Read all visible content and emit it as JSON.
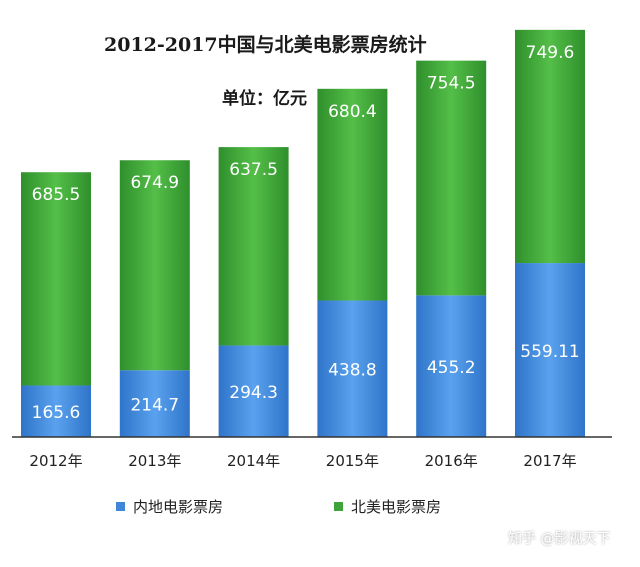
{
  "chart_data": {
    "type": "bar",
    "stacked": true,
    "title": "2012-2017中国与北美电影票房统计",
    "subtitle": "单位：亿元",
    "categories": [
      "2012年",
      "2013年",
      "2014年",
      "2015年",
      "2016年",
      "2017年"
    ],
    "series": [
      {
        "name": "内地电影票房",
        "color": "#3f86d8",
        "values": [
          165.6,
          214.7,
          294.3,
          438.8,
          455.2,
          559.11
        ],
        "labels": [
          "165.6",
          "214.7",
          "294.3",
          "438.8",
          "455.2",
          "559.11"
        ]
      },
      {
        "name": "北美电影票房",
        "color": "#3fa33c",
        "values": [
          685.5,
          674.9,
          637.5,
          680.4,
          754.5,
          749.6
        ],
        "labels": [
          "685.5",
          "674.9",
          "637.5",
          "680.4",
          "754.5",
          "749.6"
        ]
      }
    ],
    "ylim": [
      0,
      1350
    ],
    "grid": false,
    "legend_position": "bottom"
  },
  "watermark": "知乎 @影视天下"
}
